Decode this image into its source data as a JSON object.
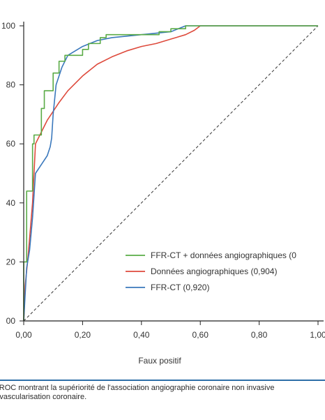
{
  "chart_data": {
    "type": "line",
    "xlabel": "Faux positif",
    "xlim": [
      0,
      1
    ],
    "ylim": [
      0,
      100
    ],
    "x_ticks": [
      "0,00",
      "0,20",
      "0,40",
      "0,60",
      "0,80",
      "1,00"
    ],
    "y_ticks": [
      "00",
      "20",
      "40",
      "60",
      "80",
      "100"
    ],
    "grid": false,
    "legend_position": "bottom-right",
    "series": [
      {
        "name": "FFR-CT + données angiographiques (0",
        "color": "#5aab46",
        "step": true,
        "points": [
          [
            0,
            0
          ],
          [
            0,
            20
          ],
          [
            0.01,
            20
          ],
          [
            0.01,
            44
          ],
          [
            0.03,
            44
          ],
          [
            0.03,
            60
          ],
          [
            0.035,
            60
          ],
          [
            0.035,
            63
          ],
          [
            0.06,
            63
          ],
          [
            0.06,
            72
          ],
          [
            0.07,
            72
          ],
          [
            0.07,
            78
          ],
          [
            0.1,
            78
          ],
          [
            0.1,
            84
          ],
          [
            0.12,
            84
          ],
          [
            0.12,
            88
          ],
          [
            0.14,
            88
          ],
          [
            0.14,
            90
          ],
          [
            0.2,
            90
          ],
          [
            0.2,
            92
          ],
          [
            0.22,
            92
          ],
          [
            0.22,
            94
          ],
          [
            0.26,
            94
          ],
          [
            0.26,
            96
          ],
          [
            0.28,
            96
          ],
          [
            0.28,
            97
          ],
          [
            0.46,
            97
          ],
          [
            0.46,
            98
          ],
          [
            0.5,
            98
          ],
          [
            0.5,
            99
          ],
          [
            0.55,
            99
          ],
          [
            0.55,
            100
          ],
          [
            1,
            100
          ]
        ]
      },
      {
        "name": "Données angiographiques (0,904)",
        "color": "#de4a3c",
        "step": false,
        "points": [
          [
            0,
            0
          ],
          [
            0.005,
            12
          ],
          [
            0.015,
            22
          ],
          [
            0.03,
            40
          ],
          [
            0.04,
            60
          ],
          [
            0.06,
            64
          ],
          [
            0.08,
            68
          ],
          [
            0.1,
            71
          ],
          [
            0.12,
            74
          ],
          [
            0.15,
            78
          ],
          [
            0.2,
            83
          ],
          [
            0.25,
            87
          ],
          [
            0.3,
            89.5
          ],
          [
            0.35,
            91.5
          ],
          [
            0.4,
            93
          ],
          [
            0.45,
            94
          ],
          [
            0.5,
            95.5
          ],
          [
            0.55,
            97
          ],
          [
            0.58,
            98.5
          ],
          [
            0.6,
            100
          ],
          [
            1,
            100
          ]
        ]
      },
      {
        "name": "FFR-CT (0,920)",
        "color": "#3a78bc",
        "step": false,
        "points": [
          [
            0,
            0
          ],
          [
            0.01,
            18
          ],
          [
            0.02,
            24
          ],
          [
            0.03,
            35
          ],
          [
            0.04,
            50
          ],
          [
            0.06,
            53
          ],
          [
            0.08,
            56
          ],
          [
            0.09,
            59
          ],
          [
            0.095,
            62
          ],
          [
            0.1,
            70
          ],
          [
            0.11,
            80
          ],
          [
            0.13,
            86
          ],
          [
            0.15,
            90
          ],
          [
            0.2,
            93
          ],
          [
            0.25,
            95
          ],
          [
            0.3,
            96
          ],
          [
            0.4,
            97
          ],
          [
            0.5,
            98
          ],
          [
            0.55,
            100
          ],
          [
            1,
            100
          ]
        ]
      }
    ],
    "reference_line": {
      "style": "dashed",
      "from": [
        0,
        0
      ],
      "to": [
        1,
        100
      ],
      "color": "#333333"
    }
  },
  "caption": {
    "line1": "pes ROC montrant la supériorité de l'association angiographie coronaire non invasive",
    "line2": "la revascularisation coronaire."
  },
  "colors": {
    "axis": "#222222",
    "caption_rule": "#2d6fa8"
  }
}
